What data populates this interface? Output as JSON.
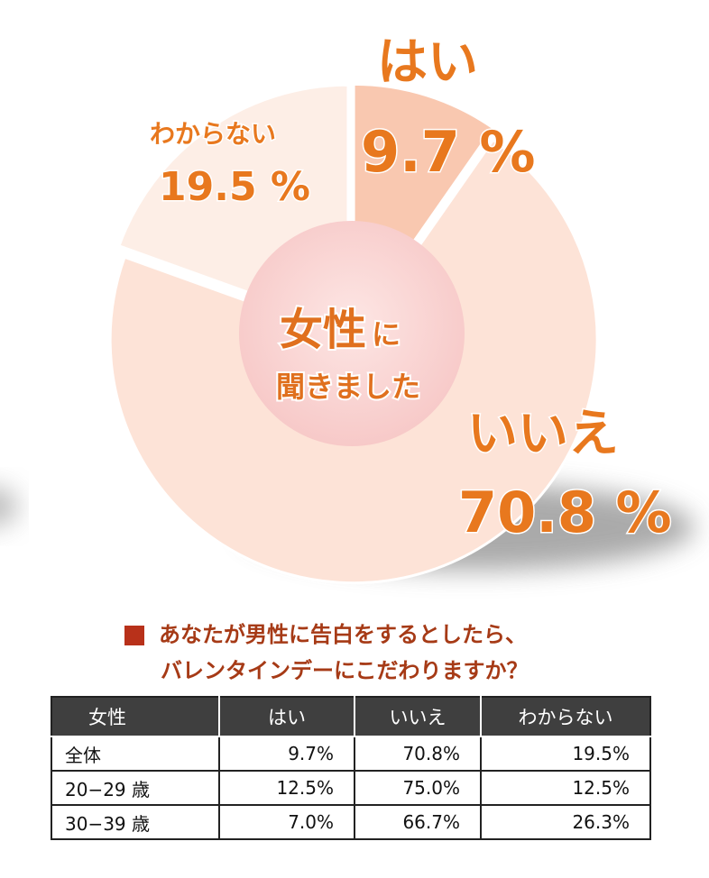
{
  "chart_data": {
    "type": "pie",
    "center_text": [
      "女性",
      "に",
      "聞きました"
    ],
    "slices": [
      {
        "label": "はい",
        "value": 9.7,
        "value_text": "9.7 %",
        "color": "#f9c8b0"
      },
      {
        "label": "いいえ",
        "value": 70.8,
        "value_text": "70.8 %",
        "color": "#fde3d7"
      },
      {
        "label": "わからない",
        "value": 19.5,
        "value_text": "19.5 %",
        "color": "#fdeee6"
      }
    ],
    "colors": {
      "label": "#e8781e",
      "center_fill": "#fbdcdc",
      "shadow": "#9a9a9a"
    }
  },
  "question": {
    "line1": "あなたが男性に告白をするとしたら、",
    "line2": "バレンタインデーにこだわりますか？"
  },
  "table": {
    "headers": [
      "女性",
      "はい",
      "いいえ",
      "わからない"
    ],
    "rows": [
      [
        "全体",
        "9.7%",
        "70.8%",
        "19.5%"
      ],
      [
        "20−29 歳",
        "12.5%",
        "75.0%",
        "12.5%"
      ],
      [
        "30−39 歳",
        "7.0%",
        "66.7%",
        "26.3%"
      ]
    ]
  }
}
